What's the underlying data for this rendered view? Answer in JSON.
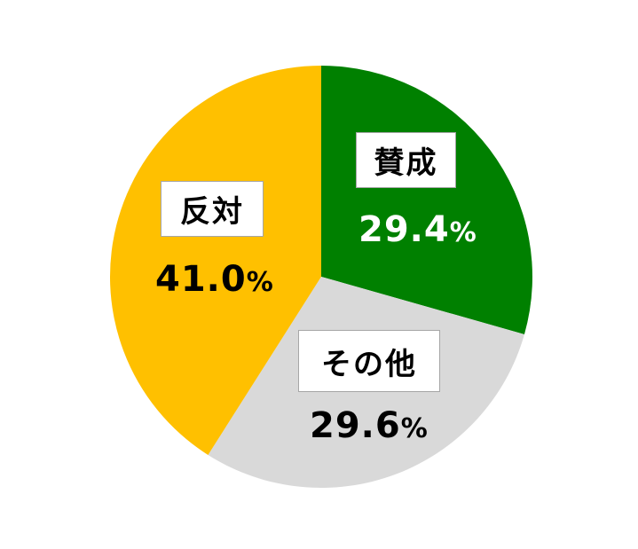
{
  "chart_data": {
    "type": "pie",
    "slices": [
      {
        "label": "賛成",
        "value": 29.4,
        "display": "29.4",
        "unit": "%",
        "color": "#008000",
        "text_color": "#ffffff"
      },
      {
        "label": "その他",
        "value": 29.6,
        "display": "29.6",
        "unit": "%",
        "color": "#d9d9d9",
        "text_color": "#000000"
      },
      {
        "label": "反対",
        "value": 41.0,
        "display": "41.0",
        "unit": "%",
        "color": "#ffc000",
        "text_color": "#000000"
      }
    ],
    "start_angle": "12 o'clock",
    "direction": "clockwise"
  }
}
